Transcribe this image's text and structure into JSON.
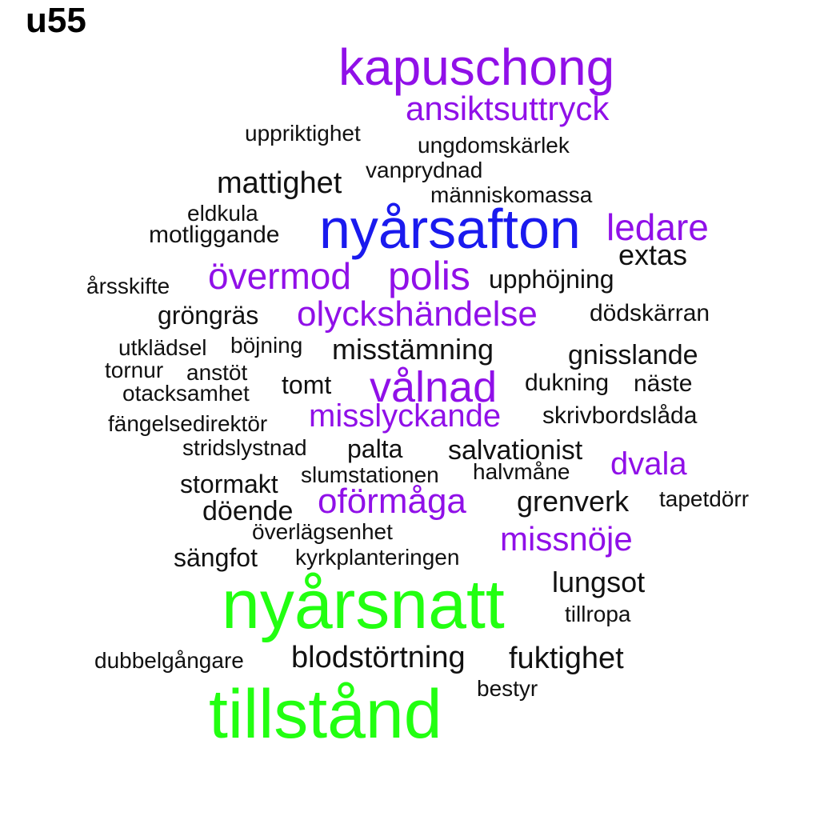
{
  "title": "u55",
  "palette": {
    "green": "#22ff11",
    "blue": "#1a1aee",
    "purple": "#9010e8",
    "black": "#111111"
  },
  "words": [
    {
      "text": "kapuschong",
      "color": "purple"
    },
    {
      "text": "ansiktsuttryck",
      "color": "purple"
    },
    {
      "text": "uppriktighet",
      "color": "black"
    },
    {
      "text": "ungdomskärlek",
      "color": "black"
    },
    {
      "text": "vanprydnad",
      "color": "black"
    },
    {
      "text": "mattighet",
      "color": "black"
    },
    {
      "text": "människomassa",
      "color": "black"
    },
    {
      "text": "eldkula",
      "color": "black"
    },
    {
      "text": "nyårsafton",
      "color": "blue"
    },
    {
      "text": "ledare",
      "color": "purple"
    },
    {
      "text": "motliggande",
      "color": "black"
    },
    {
      "text": "extas",
      "color": "black"
    },
    {
      "text": "övermod",
      "color": "purple"
    },
    {
      "text": "polis",
      "color": "purple"
    },
    {
      "text": "upphöjning",
      "color": "black"
    },
    {
      "text": "årsskifte",
      "color": "black"
    },
    {
      "text": "gröngräs",
      "color": "black"
    },
    {
      "text": "olyckshändelse",
      "color": "purple"
    },
    {
      "text": "dödskärran",
      "color": "black"
    },
    {
      "text": "utklädsel",
      "color": "black"
    },
    {
      "text": "böjning",
      "color": "black"
    },
    {
      "text": "misstämning",
      "color": "black"
    },
    {
      "text": "gnisslande",
      "color": "black"
    },
    {
      "text": "tornur",
      "color": "black"
    },
    {
      "text": "anstöt",
      "color": "black"
    },
    {
      "text": "vålnad",
      "color": "purple"
    },
    {
      "text": "dukning",
      "color": "black"
    },
    {
      "text": "näste",
      "color": "black"
    },
    {
      "text": "tomt",
      "color": "black"
    },
    {
      "text": "otacksamhet",
      "color": "black"
    },
    {
      "text": "misslyckande",
      "color": "purple"
    },
    {
      "text": "skrivbordslåda",
      "color": "black"
    },
    {
      "text": "fängelsedirektör",
      "color": "black"
    },
    {
      "text": "stridslystnad",
      "color": "black"
    },
    {
      "text": "palta",
      "color": "black"
    },
    {
      "text": "salvationist",
      "color": "black"
    },
    {
      "text": "dvala",
      "color": "purple"
    },
    {
      "text": "halvmåne",
      "color": "black"
    },
    {
      "text": "slumstationen",
      "color": "black"
    },
    {
      "text": "stormakt",
      "color": "black"
    },
    {
      "text": "oförmåga",
      "color": "purple"
    },
    {
      "text": "grenverk",
      "color": "black"
    },
    {
      "text": "tapetdörr",
      "color": "black"
    },
    {
      "text": "döende",
      "color": "black"
    },
    {
      "text": "överlägsenhet",
      "color": "black"
    },
    {
      "text": "missnöje",
      "color": "purple"
    },
    {
      "text": "sängfot",
      "color": "black"
    },
    {
      "text": "kyrkplanteringen",
      "color": "black"
    },
    {
      "text": "lungsot",
      "color": "black"
    },
    {
      "text": "nyårsnatt",
      "color": "green"
    },
    {
      "text": "tillropa",
      "color": "black"
    },
    {
      "text": "dubbelgångare",
      "color": "black"
    },
    {
      "text": "blodstörtning",
      "color": "black"
    },
    {
      "text": "fuktighet",
      "color": "black"
    },
    {
      "text": "bestyr",
      "color": "black"
    },
    {
      "text": "tillstånd",
      "color": "green"
    }
  ]
}
